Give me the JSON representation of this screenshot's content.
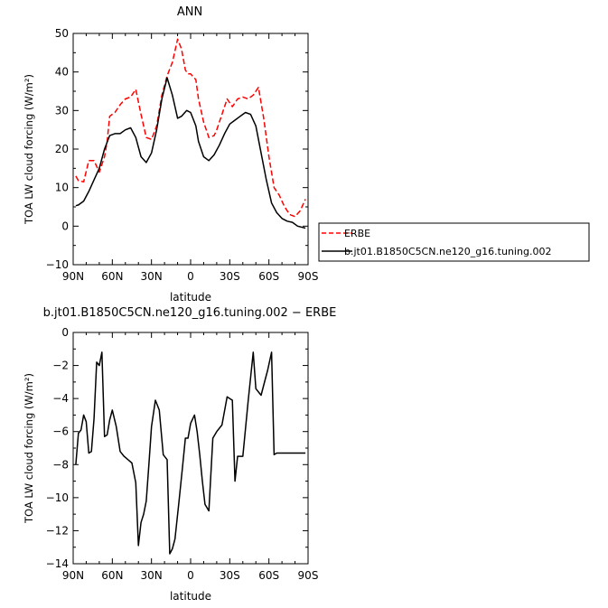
{
  "chart_data": [
    {
      "type": "line",
      "title": "ANN",
      "xlabel": "latitude",
      "ylabel": "TOA LW cloud forcing (W/m²)",
      "xlim": [
        -90,
        90
      ],
      "ylim": [
        -10,
        50
      ],
      "x_tick_values": [
        -90,
        -60,
        -30,
        0,
        30,
        60,
        90
      ],
      "x_tick_labels": [
        "90N",
        "60N",
        "30N",
        "0",
        "30S",
        "60S",
        "90S"
      ],
      "y_ticks": [
        -10,
        0,
        10,
        20,
        30,
        40,
        50
      ],
      "legend_position": "right",
      "series": [
        {
          "name": "ERBE",
          "color": "#ff0000",
          "dash": "dashed",
          "x": [
            -88,
            -86,
            -82,
            -78,
            -74,
            -70,
            -66,
            -64,
            -62,
            -58,
            -54,
            -50,
            -46,
            -42,
            -38,
            -34,
            -30,
            -26,
            -22,
            -18,
            -14,
            -10,
            -7,
            -4,
            -2,
            0,
            4,
            6,
            10,
            14,
            18,
            20,
            24,
            28,
            32,
            36,
            40,
            44,
            48,
            52,
            56,
            60,
            64,
            68,
            72,
            76,
            80,
            84,
            88
          ],
          "y": [
            13,
            11.8,
            11.5,
            17,
            17,
            14,
            18,
            22,
            28.5,
            29.5,
            31.5,
            33,
            33.5,
            35.5,
            29,
            23,
            22.5,
            26,
            34,
            39,
            42.5,
            48.5,
            46,
            40.5,
            39.5,
            39.5,
            38,
            33,
            27,
            23,
            23.5,
            25,
            29,
            33,
            31,
            33,
            33.5,
            33,
            34,
            36,
            28,
            18,
            10,
            8,
            5,
            3,
            2.5,
            4,
            7
          ]
        },
        {
          "name": "b.jt01.B1850C5CN.ne120_g16.tuning.002",
          "color": "#000000",
          "dash": "solid",
          "x": [
            -88,
            -86,
            -82,
            -78,
            -74,
            -70,
            -66,
            -62,
            -58,
            -54,
            -50,
            -46,
            -42,
            -38,
            -34,
            -30,
            -26,
            -22,
            -18,
            -14,
            -10,
            -7,
            -3,
            0,
            4,
            6,
            10,
            14,
            18,
            22,
            26,
            30,
            34,
            38,
            42,
            46,
            50,
            54,
            58,
            62,
            66,
            70,
            74,
            78,
            82,
            88
          ],
          "y": [
            5.3,
            5.5,
            6.5,
            9,
            12,
            15,
            20,
            23.5,
            24,
            24,
            25,
            25.5,
            23,
            18,
            16.5,
            19,
            25,
            33,
            38.5,
            34,
            28,
            28.5,
            30,
            29.5,
            26,
            22,
            18,
            17,
            18.5,
            21,
            24,
            26.5,
            27.5,
            28.5,
            29.5,
            29,
            26,
            19,
            12,
            6,
            3.5,
            2,
            1.3,
            1,
            0,
            -0.5
          ]
        }
      ]
    },
    {
      "type": "line",
      "title": "b.jt01.B1850C5CN.ne120_g16.tuning.002 − ERBE",
      "xlabel": "latitude",
      "ylabel": "TOA LW cloud forcing (W/m²)",
      "xlim": [
        -90,
        90
      ],
      "ylim": [
        -14,
        0
      ],
      "x_tick_values": [
        -90,
        -60,
        -30,
        0,
        30,
        60,
        90
      ],
      "x_tick_labels": [
        "90N",
        "60N",
        "30N",
        "0",
        "30S",
        "60S",
        "90S"
      ],
      "y_ticks": [
        -14,
        -12,
        -10,
        -8,
        -6,
        -4,
        -2,
        0
      ],
      "series": [
        {
          "color": "#000000",
          "dash": "solid",
          "x": [
            -88,
            -86,
            -84,
            -82,
            -80,
            -78,
            -76,
            -74,
            -72,
            -70,
            -68,
            -66,
            -64,
            -62,
            -60,
            -57,
            -54,
            -51,
            -48,
            -45,
            -42,
            -40,
            -38,
            -36,
            -34,
            -32,
            -30,
            -27,
            -24,
            -21,
            -18,
            -16,
            -14,
            -12,
            -9,
            -6,
            -4,
            -2,
            0,
            3,
            5,
            7,
            9,
            11,
            14,
            17,
            20,
            24,
            28,
            32,
            34,
            36,
            40,
            44,
            48,
            50,
            54,
            57,
            59,
            62,
            64,
            66,
            69,
            71,
            74,
            77,
            80,
            83,
            86,
            88
          ],
          "y": [
            -8,
            -6.1,
            -5.9,
            -5.0,
            -5.4,
            -7.3,
            -7.2,
            -5.2,
            -1.8,
            -2.0,
            -1.2,
            -6.3,
            -6.2,
            -5.3,
            -4.7,
            -5.7,
            -7.2,
            -7.5,
            -7.7,
            -7.9,
            -9.1,
            -12.9,
            -11.5,
            -11.0,
            -10.2,
            -8.0,
            -5.7,
            -4.1,
            -4.7,
            -7.4,
            -7.7,
            -13.4,
            -13.1,
            -12.5,
            -10.3,
            -8.0,
            -6.4,
            -6.4,
            -5.5,
            -5.0,
            -6.0,
            -7.4,
            -9.0,
            -10.4,
            -10.8,
            -6.4,
            -6.0,
            -5.6,
            -3.9,
            -4.1,
            -9.0,
            -7.5,
            -7.5,
            -4.2,
            -1.2,
            -3.4,
            -3.8,
            -2.9,
            -2.3,
            -1.2,
            -7.4,
            -7.3,
            -7.3,
            -7.3,
            -7.3,
            -7.3,
            -7.3,
            -7.3,
            -7.3,
            -7.3
          ]
        }
      ]
    }
  ]
}
